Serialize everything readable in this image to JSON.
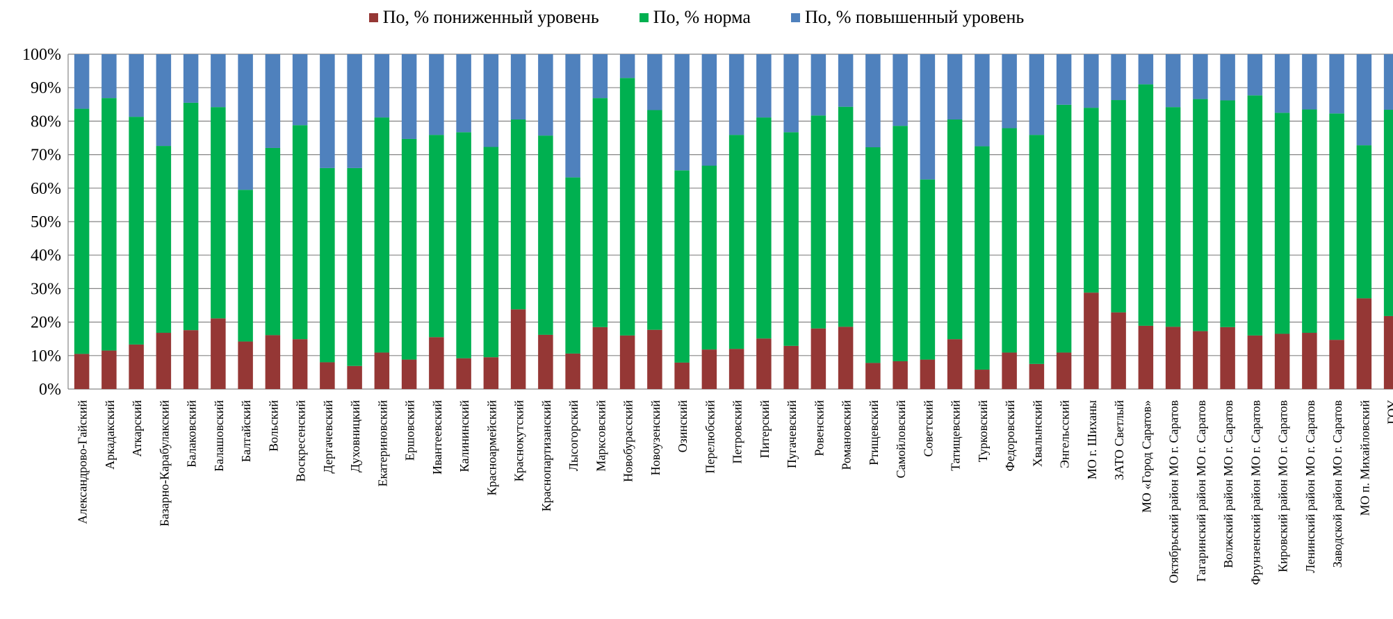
{
  "chart_data": {
    "type": "bar",
    "stacked": true,
    "percent_stacked": true,
    "legend_position": "top",
    "grid": true,
    "ylim": [
      0,
      100
    ],
    "yticks": [
      "0%",
      "10%",
      "20%",
      "30%",
      "40%",
      "50%",
      "60%",
      "70%",
      "80%",
      "90%",
      "100%"
    ],
    "categories": [
      "Александрово-Гайский",
      "Аркадакский",
      "Аткарский",
      "Базарно-Карабулакский",
      "Балаковский",
      "Балашовский",
      "Балтайский",
      "Вольский",
      "Воскресенский",
      "Дергачевский",
      "Духовницкий",
      "Екатериновский",
      "Ершовский",
      "Ивантеевский",
      "Калининский",
      "Красноармейский",
      "Краснокутский",
      "Краснопартизанский",
      "Лысогорский",
      "Марксовский",
      "Новобурасский",
      "Новоузенский",
      "Озинский",
      "Перелюбский",
      "Петровский",
      "Питерский",
      "Пугачевский",
      "Ровенский",
      "Романовский",
      "Ртищевский",
      "Самойловский",
      "Советский",
      "Татищевский",
      "Турковский",
      "Федоровский",
      "Хвалынский",
      "Энгельсский",
      "МО г. Шиханы",
      "ЗАТО Светлый",
      "МО «Город Саратов»",
      "Октябрьский район МО г. Саратов",
      "Гагаринский район МО г. Саратов",
      "Волжский район МО г. Саратов",
      "Фрунзенский район МО г. Саратов",
      "Кировский район МО г. Саратов",
      "Ленинский район МО г. Саратов",
      "Заводской район МО г. Саратов",
      "МО п. Михайловский",
      "ГОУ"
    ],
    "series": [
      {
        "name": "По, % пониженный уровень",
        "color": "#953735",
        "values": [
          10.5,
          11.5,
          13.3,
          16.8,
          17.6,
          21.1,
          14.2,
          16.1,
          14.9,
          8.0,
          6.9,
          10.9,
          8.8,
          15.5,
          9.2,
          9.5,
          23.8,
          16.2,
          10.6,
          18.5,
          16.0,
          17.7,
          7.9,
          11.8,
          12.0,
          15.1,
          12.9,
          18.1,
          18.6,
          7.8,
          8.3,
          8.8,
          14.9,
          5.8,
          10.9,
          7.5,
          10.9,
          28.8,
          22.9,
          18.9,
          18.6,
          17.3,
          18.5,
          16.0,
          16.5,
          16.8,
          14.7,
          27.1,
          21.8
        ]
      },
      {
        "name": "По, % норма",
        "color": "#00B050",
        "values": [
          73.2,
          75.4,
          68.0,
          55.8,
          67.9,
          63.1,
          45.3,
          55.9,
          63.9,
          58.0,
          59.1,
          70.2,
          65.9,
          60.4,
          67.5,
          62.8,
          56.7,
          59.5,
          52.6,
          68.4,
          76.9,
          65.6,
          57.4,
          54.9,
          63.9,
          66.0,
          63.8,
          63.6,
          65.7,
          64.4,
          70.3,
          53.8,
          65.6,
          66.7,
          67.0,
          68.4,
          74.0,
          55.2,
          63.4,
          72.1,
          65.6,
          69.3,
          67.7,
          71.7,
          66.0,
          66.7,
          67.6,
          45.7,
          61.6
        ]
      },
      {
        "name": "По, % повышенный уровень",
        "color": "#4F81BD",
        "values": [
          16.3,
          13.1,
          18.7,
          27.4,
          14.5,
          15.8,
          40.5,
          28.0,
          21.2,
          34.0,
          34.0,
          18.9,
          25.3,
          24.1,
          23.3,
          27.7,
          19.5,
          24.3,
          36.8,
          13.1,
          7.1,
          16.7,
          34.7,
          33.3,
          24.1,
          18.9,
          23.3,
          18.3,
          15.7,
          27.8,
          21.4,
          37.4,
          19.5,
          27.5,
          22.1,
          24.1,
          15.1,
          16.0,
          13.7,
          9.0,
          15.8,
          13.4,
          13.8,
          12.3,
          17.5,
          16.5,
          17.7,
          27.2,
          16.6
        ]
      }
    ]
  }
}
